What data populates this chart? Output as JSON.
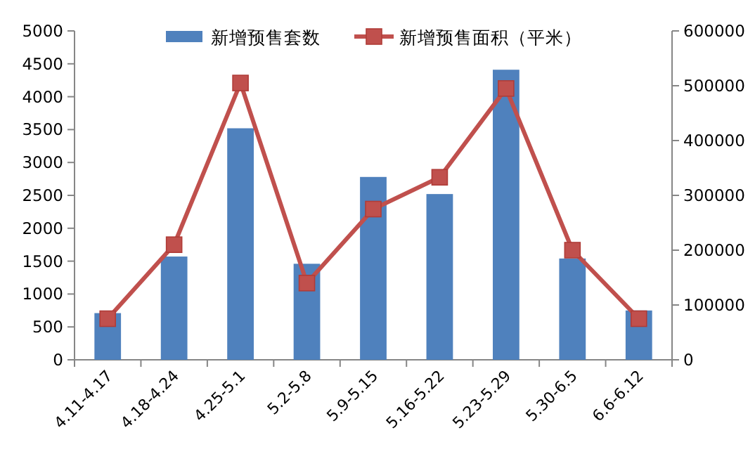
{
  "chart_data": {
    "type": "bar",
    "categories": [
      "4.11-4.17",
      "4.18-4.24",
      "4.25-5.1",
      "5.2-5.8",
      "5.9-5.15",
      "5.16-5.22",
      "5.23-5.29",
      "5.30-6.5",
      "6.6-6.12"
    ],
    "series": [
      {
        "name": "新增预售套数",
        "color": "#4f81bd",
        "values": [
          710,
          1570,
          3520,
          1460,
          2780,
          2520,
          4410,
          1540,
          750
        ]
      },
      {
        "name": "新增预售面积（平米）",
        "color": "#c0504d",
        "type": "line",
        "axis": "y2",
        "values": [
          75000,
          210000,
          505000,
          140000,
          275000,
          333000,
          495000,
          200000,
          75000
        ]
      }
    ],
    "ylim": [
      0,
      5000
    ],
    "yticks": [
      0,
      500,
      1000,
      1500,
      2000,
      2500,
      3000,
      3500,
      4000,
      4500,
      5000
    ],
    "y2lim": [
      0,
      600000
    ],
    "y2ticks": [
      0,
      100000,
      200000,
      300000,
      400000,
      500000,
      600000
    ],
    "legend": "top",
    "marker": "square",
    "line_style": "solid",
    "grid": false
  }
}
